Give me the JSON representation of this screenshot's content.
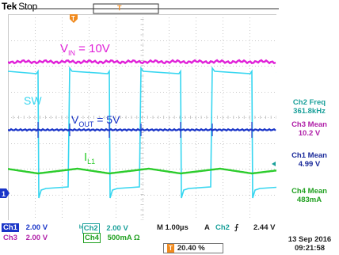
{
  "header": {
    "brand": "Tek",
    "state": "Stop"
  },
  "labels": {
    "vin_main": "V",
    "vin_sub": "IN",
    "vin_rest": " = 10V",
    "sw": "SW",
    "vout_main": "V",
    "vout_sub": "OUT",
    "vout_rest": " = 5V",
    "il_main": "I",
    "il_sub": "L1"
  },
  "measurements": [
    {
      "label": "Ch2 Freq",
      "value": "361.8kHz"
    },
    {
      "label": "Ch3 Mean",
      "value": "10.2 V"
    },
    {
      "label": "Ch1 Mean",
      "value": "4.99 V"
    },
    {
      "label": "Ch4 Mean",
      "value": "483mA"
    }
  ],
  "bottom": {
    "ch1": {
      "name": "Ch1",
      "scale": "2.00 V"
    },
    "ch2": {
      "name": "Ch2",
      "scale": "2.00 V"
    },
    "ch3": {
      "name": "Ch3",
      "scale": "2.00 V"
    },
    "ch4": {
      "name": "Ch4",
      "scale": "500mA Ω"
    },
    "timebase": "M 1.00µs",
    "trigger_mode": "A",
    "trigger_source": "Ch2",
    "trigger_slope": "⨍",
    "trigger_level": "2.44 V",
    "trigger_position_marker": "T",
    "trigger_position": "20.40 %",
    "date": "13 Sep  2016",
    "time": "09:21:58"
  },
  "markers": {
    "trigger": "T",
    "ch1_ground": "1"
  },
  "colors": {
    "ch1": "#1a35c8",
    "ch2": "#36d6f0",
    "ch3": "#e020d8",
    "ch4": "#2ccc2c",
    "trigger": "#f08a1e",
    "grid": "#c8c8c8",
    "measure_ch2": "#1aa09a",
    "measure_ch3": "#b020a8",
    "measure_ch1": "#1a2a9a",
    "measure_ch4": "#20a020"
  }
}
